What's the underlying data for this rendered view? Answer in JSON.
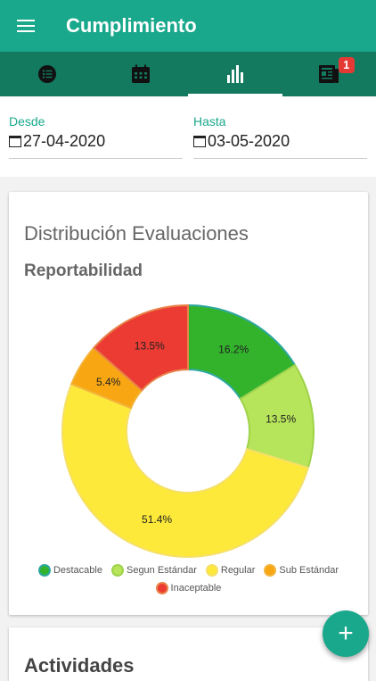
{
  "header": {
    "title": "Cumplimiento"
  },
  "tabs": [
    {
      "icon": "list-icon"
    },
    {
      "icon": "calendar-icon"
    },
    {
      "icon": "bar-chart-icon",
      "active": true
    },
    {
      "icon": "newspaper-icon",
      "badge": "1"
    }
  ],
  "filters": {
    "desde": {
      "label": "Desde",
      "value": "27-04-2020"
    },
    "hasta": {
      "label": "Hasta",
      "value": "03-05-2020"
    }
  },
  "card": {
    "title": "Distribución Evaluaciones",
    "subtitle": "Reportabilidad"
  },
  "chart_data": {
    "type": "pie",
    "donut": true,
    "categories": [
      "Destacable",
      "Segun Estándar",
      "Regular",
      "Sub Estándar",
      "Inaceptable"
    ],
    "values": [
      16.2,
      13.5,
      51.4,
      5.4,
      13.5
    ],
    "labels": [
      "16.2%",
      "13.5%",
      "51.4%",
      "5.4%",
      "13.5%"
    ],
    "colors": [
      "#33b32c",
      "#b6e45a",
      "#fde93a",
      "#f8a712",
      "#ec3b33"
    ],
    "strokes": [
      "#2ea8a0",
      "#9ed34a",
      "#f5e06a",
      "#f3b43a",
      "#e8834a"
    ],
    "legend": "bottom"
  },
  "card2": {
    "title": "Actividades"
  },
  "fab": {
    "label": "+"
  }
}
